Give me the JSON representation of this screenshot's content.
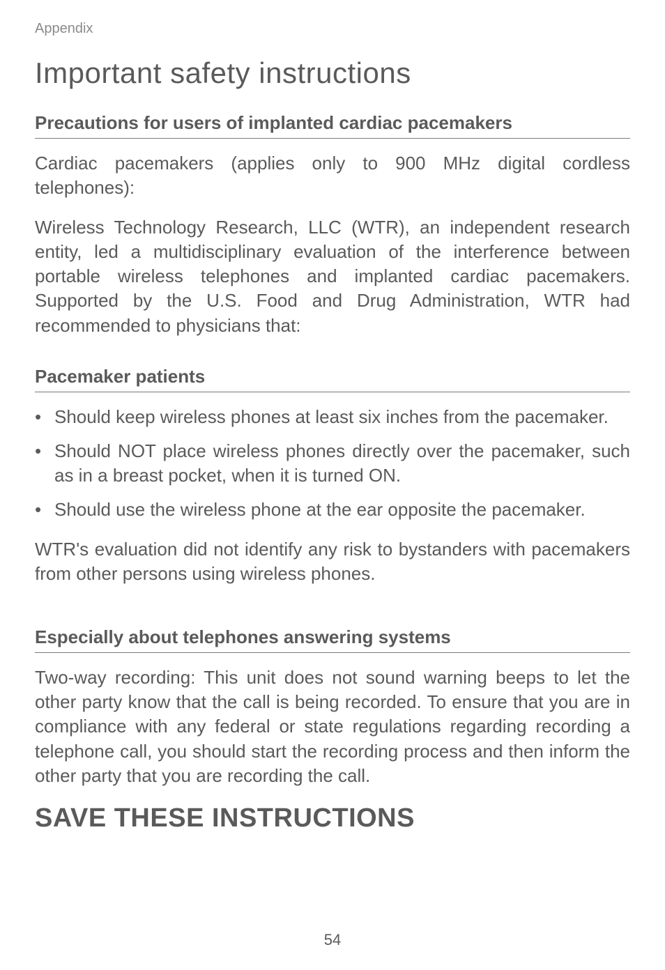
{
  "header": {
    "label": "Appendix"
  },
  "title": "Important safety instructions",
  "sections": [
    {
      "heading": "Precautions for users of implanted cardiac pacemakers",
      "paragraphs": [
        "Cardiac pacemakers (applies only to 900 MHz digital cordless telephones):",
        "Wireless Technology Research, LLC (WTR), an independent research entity, led a multidisciplinary evaluation of the interference between portable wireless telephones and implanted cardiac pacemakers. Supported by the U.S. Food and Drug Administration, WTR had recommended to physicians that:"
      ]
    },
    {
      "heading": "Pacemaker patients",
      "bullets": [
        "Should keep wireless phones at least six inches from the pacemaker.",
        "Should NOT place wireless phones directly over the pacemaker, such as in a breast pocket, when it is turned ON.",
        "Should use the wireless phone at the ear opposite the pacemaker."
      ],
      "paragraphs_after": [
        "WTR's evaluation did not identify any risk to bystanders with pacemakers from other persons using wireless phones."
      ]
    },
    {
      "heading": "Especially about telephones answering systems",
      "paragraphs": [
        "Two-way recording:  This unit does not sound warning beeps to let the other party know that the call is being recorded. To ensure that you are in compliance with any federal or state regulations regarding recording a telephone call, you should start the recording process and then inform the other party that you are recording the call."
      ]
    }
  ],
  "final_heading": "SAVE THESE INSTRUCTIONS",
  "page_number": "54",
  "colors": {
    "text": "#5a5a5a",
    "header_label": "#8a8a8a",
    "rule": "#7a7a7a",
    "background": "#ffffff"
  },
  "typography": {
    "title_fontsize": 42,
    "subhead_fontsize": 26,
    "body_fontsize": 26,
    "final_heading_fontsize": 38,
    "header_label_fontsize": 20,
    "page_number_fontsize": 22
  }
}
